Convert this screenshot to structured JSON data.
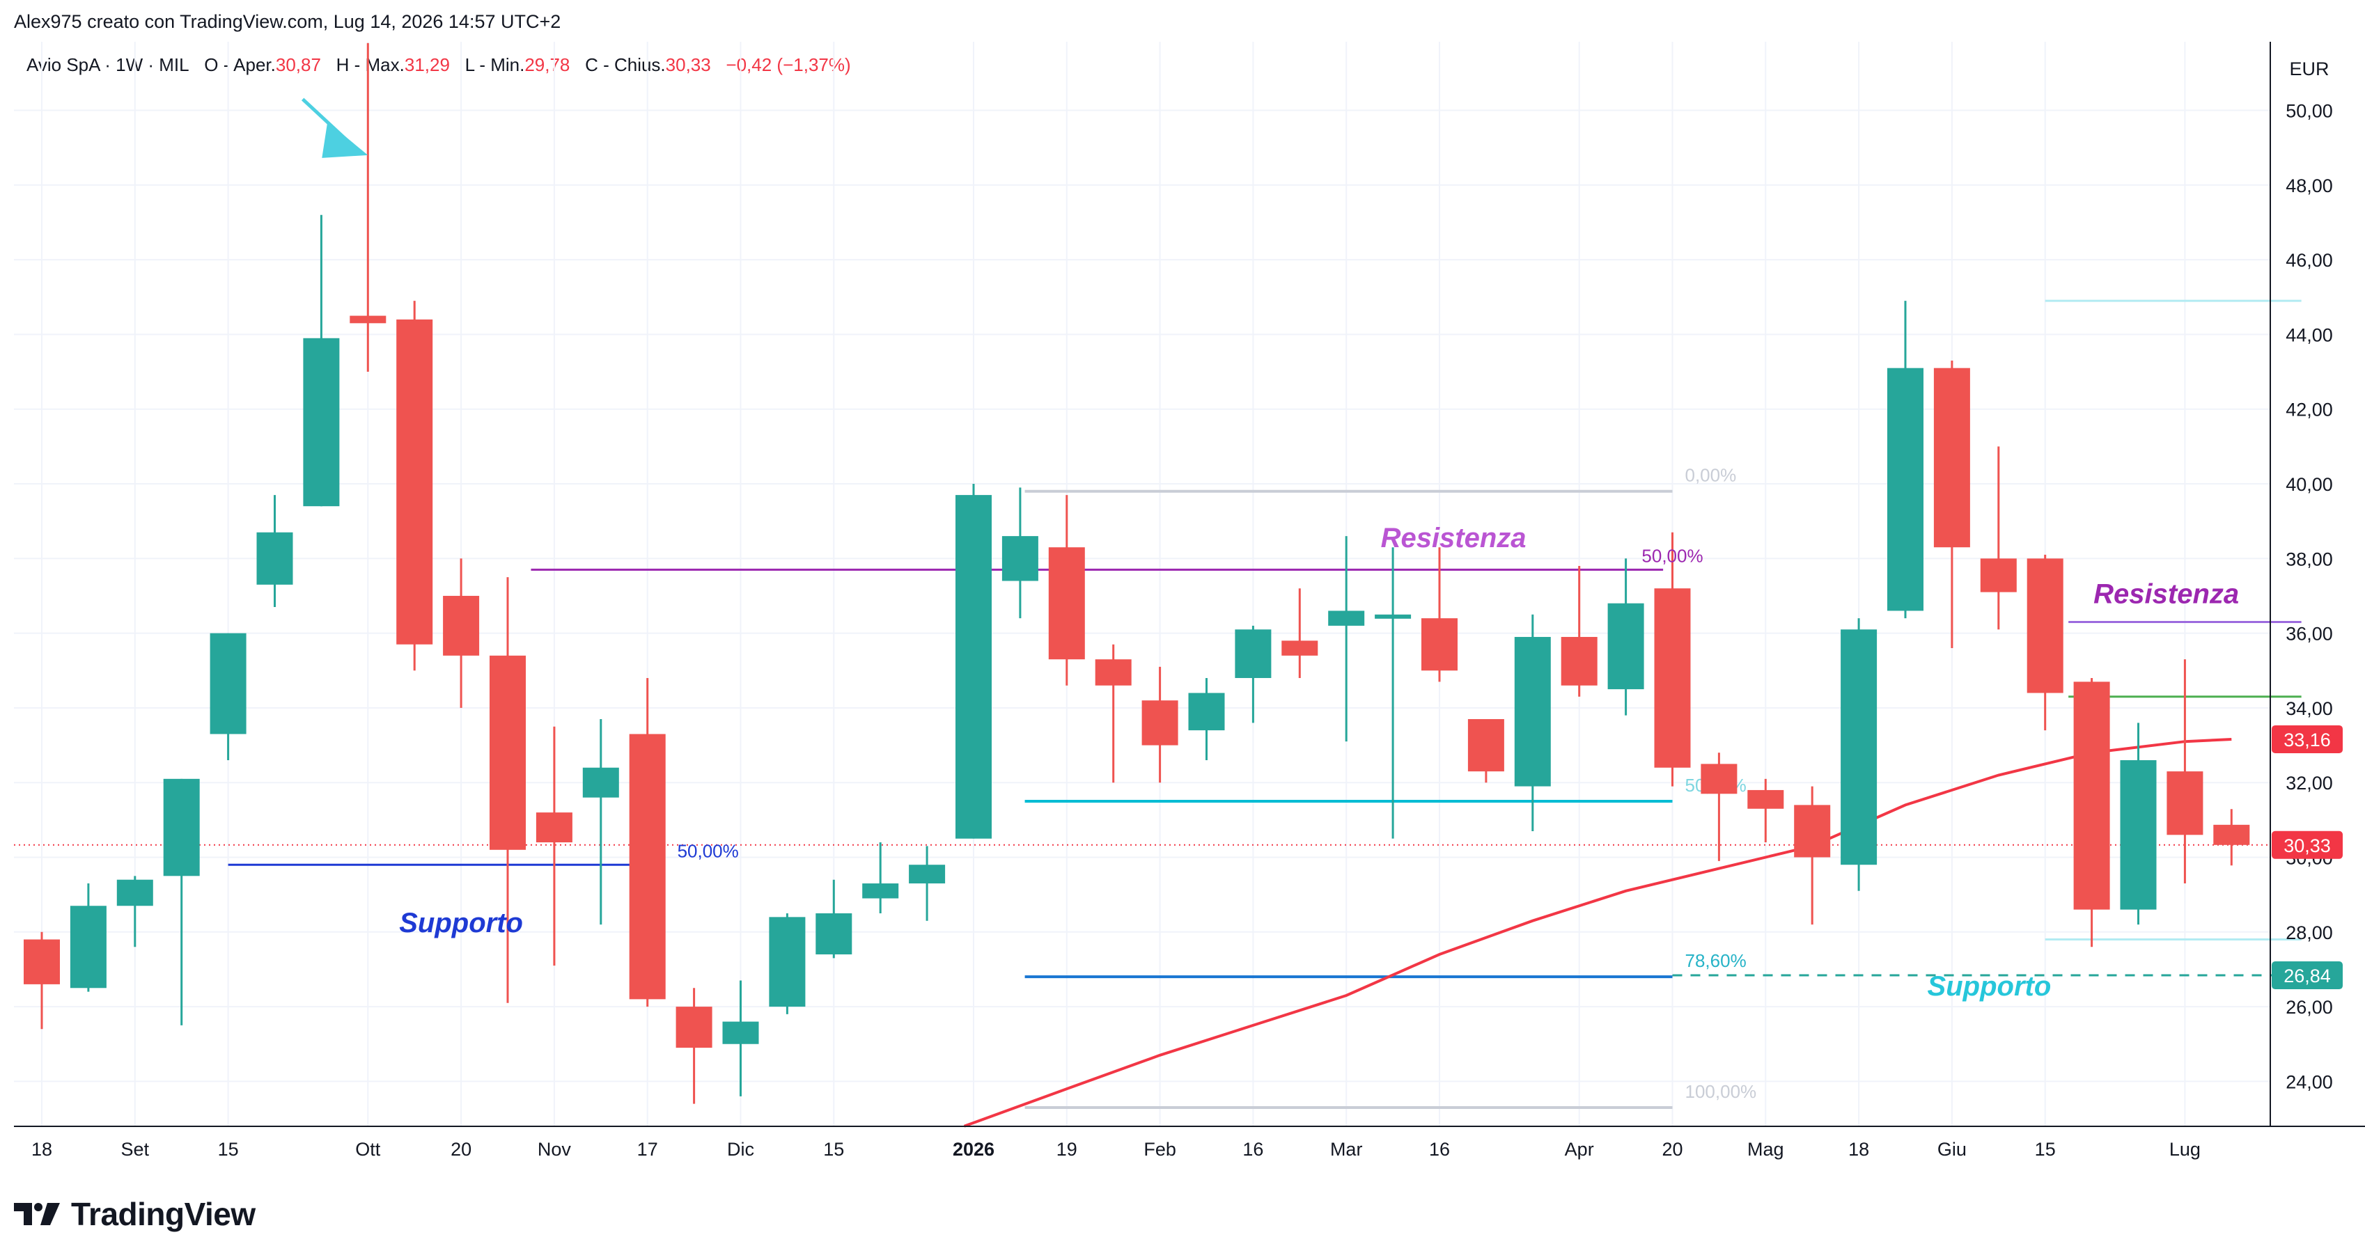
{
  "header": {
    "author_line": "Alex975 creato con TradingView.com, Lug 14, 2026 14:57 UTC+2"
  },
  "legend": {
    "symbol": "Avio SpA · 1W · MIL",
    "open_label": "O - Aper.",
    "open": "30,87",
    "high_label": "H - Max.",
    "high": "31,29",
    "low_label": "L - Min.",
    "low": "29,78",
    "close_label": "C - Chius.",
    "close": "30,33",
    "change": "−0,42 (−1,37%)"
  },
  "brand": {
    "name": "TradingView",
    "icon": "tradingview-logo-icon"
  },
  "colors": {
    "up": "#26a69a",
    "down": "#ef5350",
    "ma": "#f23645",
    "fib_mid": "#00bcd4",
    "fib_786": "#2962ff",
    "resistance": "#9c27b0",
    "support_dark": "#1e3ad4",
    "support_cyan": "#26c6da"
  },
  "chart_data": {
    "type": "candlestick",
    "currency": "EUR",
    "ylim": [
      22.8,
      51.3
    ],
    "grid": true,
    "y_ticks": [
      {
        "v": 24,
        "label": "24,00"
      },
      {
        "v": 26,
        "label": "26,00"
      },
      {
        "v": 28,
        "label": "28,00"
      },
      {
        "v": 30,
        "label": "30,00"
      },
      {
        "v": 32,
        "label": "32,00"
      },
      {
        "v": 34,
        "label": "34,00"
      },
      {
        "v": 36,
        "label": "36,00"
      },
      {
        "v": 38,
        "label": "38,00"
      },
      {
        "v": 40,
        "label": "40,00"
      },
      {
        "v": 42,
        "label": "42,00"
      },
      {
        "v": 44,
        "label": "44,00"
      },
      {
        "v": 46,
        "label": "46,00"
      },
      {
        "v": 48,
        "label": "48,00"
      },
      {
        "v": 50,
        "label": "50,00"
      }
    ],
    "x_ticks": [
      {
        "i": 0,
        "label": "18"
      },
      {
        "i": 2,
        "label": "Set"
      },
      {
        "i": 4,
        "label": "15"
      },
      {
        "i": 7,
        "label": "Ott"
      },
      {
        "i": 9,
        "label": "20"
      },
      {
        "i": 11,
        "label": "Nov"
      },
      {
        "i": 13,
        "label": "17"
      },
      {
        "i": 15,
        "label": "Dic"
      },
      {
        "i": 17,
        "label": "15"
      },
      {
        "i": 20,
        "label": "2026",
        "bold": true
      },
      {
        "i": 22,
        "label": "19"
      },
      {
        "i": 24,
        "label": "Feb"
      },
      {
        "i": 26,
        "label": "16"
      },
      {
        "i": 28,
        "label": "Mar"
      },
      {
        "i": 30,
        "label": "16"
      },
      {
        "i": 33,
        "label": "Apr"
      },
      {
        "i": 35,
        "label": "20"
      },
      {
        "i": 37,
        "label": "Mag"
      },
      {
        "i": 39,
        "label": "18"
      },
      {
        "i": 41,
        "label": "Giu"
      },
      {
        "i": 43,
        "label": "15"
      },
      {
        "i": 46,
        "label": "Lug"
      }
    ],
    "candles": [
      {
        "o": 27.8,
        "h": 28.0,
        "l": 25.4,
        "c": 26.6
      },
      {
        "o": 26.5,
        "h": 29.3,
        "l": 26.4,
        "c": 28.7
      },
      {
        "o": 28.7,
        "h": 29.5,
        "l": 27.6,
        "c": 29.4
      },
      {
        "o": 29.5,
        "h": 32.1,
        "l": 25.5,
        "c": 32.1
      },
      {
        "o": 33.3,
        "h": 36.0,
        "l": 32.6,
        "c": 36.0
      },
      {
        "o": 37.3,
        "h": 39.7,
        "l": 36.7,
        "c": 38.7
      },
      {
        "o": 39.4,
        "h": 47.2,
        "l": 39.4,
        "c": 43.9
      },
      {
        "o": 44.5,
        "h": 51.8,
        "l": 43.0,
        "c": 44.3
      },
      {
        "o": 44.4,
        "h": 44.9,
        "l": 35.0,
        "c": 35.7
      },
      {
        "o": 37.0,
        "h": 38.0,
        "l": 34.0,
        "c": 35.4
      },
      {
        "o": 35.4,
        "h": 37.5,
        "l": 26.1,
        "c": 30.2
      },
      {
        "o": 31.2,
        "h": 33.5,
        "l": 27.1,
        "c": 30.4
      },
      {
        "o": 31.6,
        "h": 33.7,
        "l": 28.2,
        "c": 32.4
      },
      {
        "o": 33.3,
        "h": 34.8,
        "l": 26.0,
        "c": 26.2
      },
      {
        "o": 26.0,
        "h": 26.5,
        "l": 23.4,
        "c": 24.9
      },
      {
        "o": 25.0,
        "h": 26.7,
        "l": 23.6,
        "c": 25.6
      },
      {
        "o": 26.0,
        "h": 28.5,
        "l": 25.8,
        "c": 28.4
      },
      {
        "o": 27.4,
        "h": 29.4,
        "l": 27.3,
        "c": 28.5
      },
      {
        "o": 28.9,
        "h": 30.4,
        "l": 28.5,
        "c": 29.3
      },
      {
        "o": 29.3,
        "h": 30.3,
        "l": 28.3,
        "c": 29.8
      },
      {
        "o": 30.5,
        "h": 40.0,
        "l": 30.5,
        "c": 39.7
      },
      {
        "o": 37.4,
        "h": 39.9,
        "l": 36.4,
        "c": 38.6
      },
      {
        "o": 38.3,
        "h": 39.7,
        "l": 34.6,
        "c": 35.3
      },
      {
        "o": 35.3,
        "h": 35.7,
        "l": 32.0,
        "c": 34.6
      },
      {
        "o": 34.2,
        "h": 35.1,
        "l": 32.0,
        "c": 33.0
      },
      {
        "o": 33.4,
        "h": 34.8,
        "l": 32.6,
        "c": 34.4
      },
      {
        "o": 34.8,
        "h": 36.2,
        "l": 33.6,
        "c": 36.1
      },
      {
        "o": 35.8,
        "h": 37.2,
        "l": 34.8,
        "c": 35.4
      },
      {
        "o": 36.2,
        "h": 38.6,
        "l": 33.1,
        "c": 36.6
      },
      {
        "o": 36.4,
        "h": 38.3,
        "l": 30.5,
        "c": 36.5
      },
      {
        "o": 36.4,
        "h": 38.3,
        "l": 34.7,
        "c": 35.0
      },
      {
        "o": 33.7,
        "h": 33.7,
        "l": 32.0,
        "c": 32.3
      },
      {
        "o": 31.9,
        "h": 36.5,
        "l": 30.7,
        "c": 35.9
      },
      {
        "o": 35.9,
        "h": 37.8,
        "l": 34.3,
        "c": 34.6
      },
      {
        "o": 34.5,
        "h": 38.0,
        "l": 33.8,
        "c": 36.8
      },
      {
        "o": 37.2,
        "h": 38.7,
        "l": 31.9,
        "c": 32.4
      },
      {
        "o": 32.5,
        "h": 32.8,
        "l": 29.9,
        "c": 31.7
      },
      {
        "o": 31.8,
        "h": 32.1,
        "l": 30.4,
        "c": 31.3
      },
      {
        "o": 31.4,
        "h": 31.9,
        "l": 28.2,
        "c": 30.0
      },
      {
        "o": 29.8,
        "h": 36.4,
        "l": 29.1,
        "c": 36.1
      },
      {
        "o": 36.6,
        "h": 44.9,
        "l": 36.4,
        "c": 43.1
      },
      {
        "o": 43.1,
        "h": 43.3,
        "l": 35.6,
        "c": 38.3
      },
      {
        "o": 38.0,
        "h": 41.0,
        "l": 36.1,
        "c": 37.1
      },
      {
        "o": 38.0,
        "h": 38.1,
        "l": 33.4,
        "c": 34.4
      },
      {
        "o": 34.7,
        "h": 34.8,
        "l": 27.6,
        "c": 28.6
      },
      {
        "o": 28.6,
        "h": 33.6,
        "l": 28.2,
        "c": 32.6
      },
      {
        "o": 32.3,
        "h": 35.3,
        "l": 29.3,
        "c": 30.6
      },
      {
        "o": 30.87,
        "h": 31.29,
        "l": 29.78,
        "c": 30.33
      }
    ],
    "moving_average": [
      {
        "i": 19.8,
        "v": 22.8
      },
      {
        "i": 22,
        "v": 23.8
      },
      {
        "i": 24,
        "v": 24.7
      },
      {
        "i": 26,
        "v": 25.5
      },
      {
        "i": 28,
        "v": 26.3
      },
      {
        "i": 30,
        "v": 27.4
      },
      {
        "i": 32,
        "v": 28.3
      },
      {
        "i": 34,
        "v": 29.1
      },
      {
        "i": 36,
        "v": 29.7
      },
      {
        "i": 38,
        "v": 30.3
      },
      {
        "i": 40,
        "v": 31.4
      },
      {
        "i": 42,
        "v": 32.2
      },
      {
        "i": 44,
        "v": 32.8
      },
      {
        "i": 46,
        "v": 33.1
      },
      {
        "i": 47,
        "v": 33.16
      }
    ],
    "fibonacci": [
      {
        "label": "0,00%",
        "v": 39.8,
        "i0": 21.1,
        "i1": 35.0,
        "color": "#c9cdd6",
        "label_color": "#c9cdd6"
      },
      {
        "label": "50,00%",
        "v": 31.5,
        "i0": 21.1,
        "i1": 35.0,
        "color": "#00bcd4",
        "label_color": "#7ed6e0"
      },
      {
        "label": "78,60%",
        "v": 26.8,
        "i0": 21.1,
        "i1": 35.0,
        "color": "#1976d2",
        "label_color": "#26b3c7"
      },
      {
        "label": "100,00%",
        "v": 23.3,
        "i0": 21.1,
        "i1": 35.0,
        "color": "#c9cdd6",
        "label_color": "#c9cdd6"
      }
    ],
    "lines": [
      {
        "name": "resistance-line-1",
        "v": 37.7,
        "i0": 10.5,
        "i1": 34.8,
        "color": "#9c27b0"
      },
      {
        "name": "support-line-1",
        "v": 29.8,
        "i0": 4.0,
        "i1": 13.0,
        "color": "#1e3ad4"
      },
      {
        "name": "resistance-line-2",
        "v": 36.3,
        "i0": 43.5,
        "i1": 48.5,
        "color": "#9c6ade"
      },
      {
        "name": "green-level-line",
        "v": 34.3,
        "i0": 43.5,
        "i1": 48.5,
        "color": "#4caf50"
      },
      {
        "name": "upper-cyan-line",
        "v": 44.9,
        "i0": 43.0,
        "i1": 48.5,
        "color": "#b2ebf2"
      },
      {
        "name": "lower-cyan-line",
        "v": 27.8,
        "i0": 43.0,
        "i1": 48.5,
        "color": "#b2ebf2"
      }
    ],
    "support_dashed": {
      "v": 26.84,
      "i0": 35.0,
      "i1": 48.5,
      "color": "#26a69a"
    },
    "current_price_line": {
      "v": 30.33,
      "color": "#f23645"
    },
    "annotations": [
      {
        "name": "resistance-label-1",
        "text": "Resistenza",
        "i": 30.3,
        "v": 38.3,
        "color": "#ba55d3"
      },
      {
        "name": "support-label-1",
        "text": "Supporto",
        "i": 9.0,
        "v": 28.0,
        "color": "#1e3ad4"
      },
      {
        "name": "resistance-label-2",
        "text": "Resistenza",
        "i": 45.6,
        "v": 36.8,
        "color": "#9c27b0"
      },
      {
        "name": "support-label-2",
        "text": "Supporto",
        "i": 41.8,
        "v": 26.3,
        "color": "#26c6da"
      },
      {
        "name": "fib-50-label-left",
        "text": "50,00%",
        "i": 14.3,
        "v": 30.0,
        "color": "#1e3ad4"
      },
      {
        "name": "fib-50-label-top",
        "text": "50,00%",
        "i": 35.0,
        "v": 37.9,
        "color": "#9c27b0"
      }
    ],
    "price_labels": [
      {
        "v": 33.16,
        "text": "33,16",
        "bg": "#f23645"
      },
      {
        "v": 30.33,
        "text": "30,33",
        "bg": "#f23645"
      },
      {
        "v": 26.84,
        "text": "26,84",
        "bg": "#26a69a"
      }
    ],
    "arrow": {
      "from_i": 5.6,
      "from_v": 50.3,
      "to_i": 7.0,
      "to_v": 48.8,
      "color": "#4dd0e1"
    }
  }
}
